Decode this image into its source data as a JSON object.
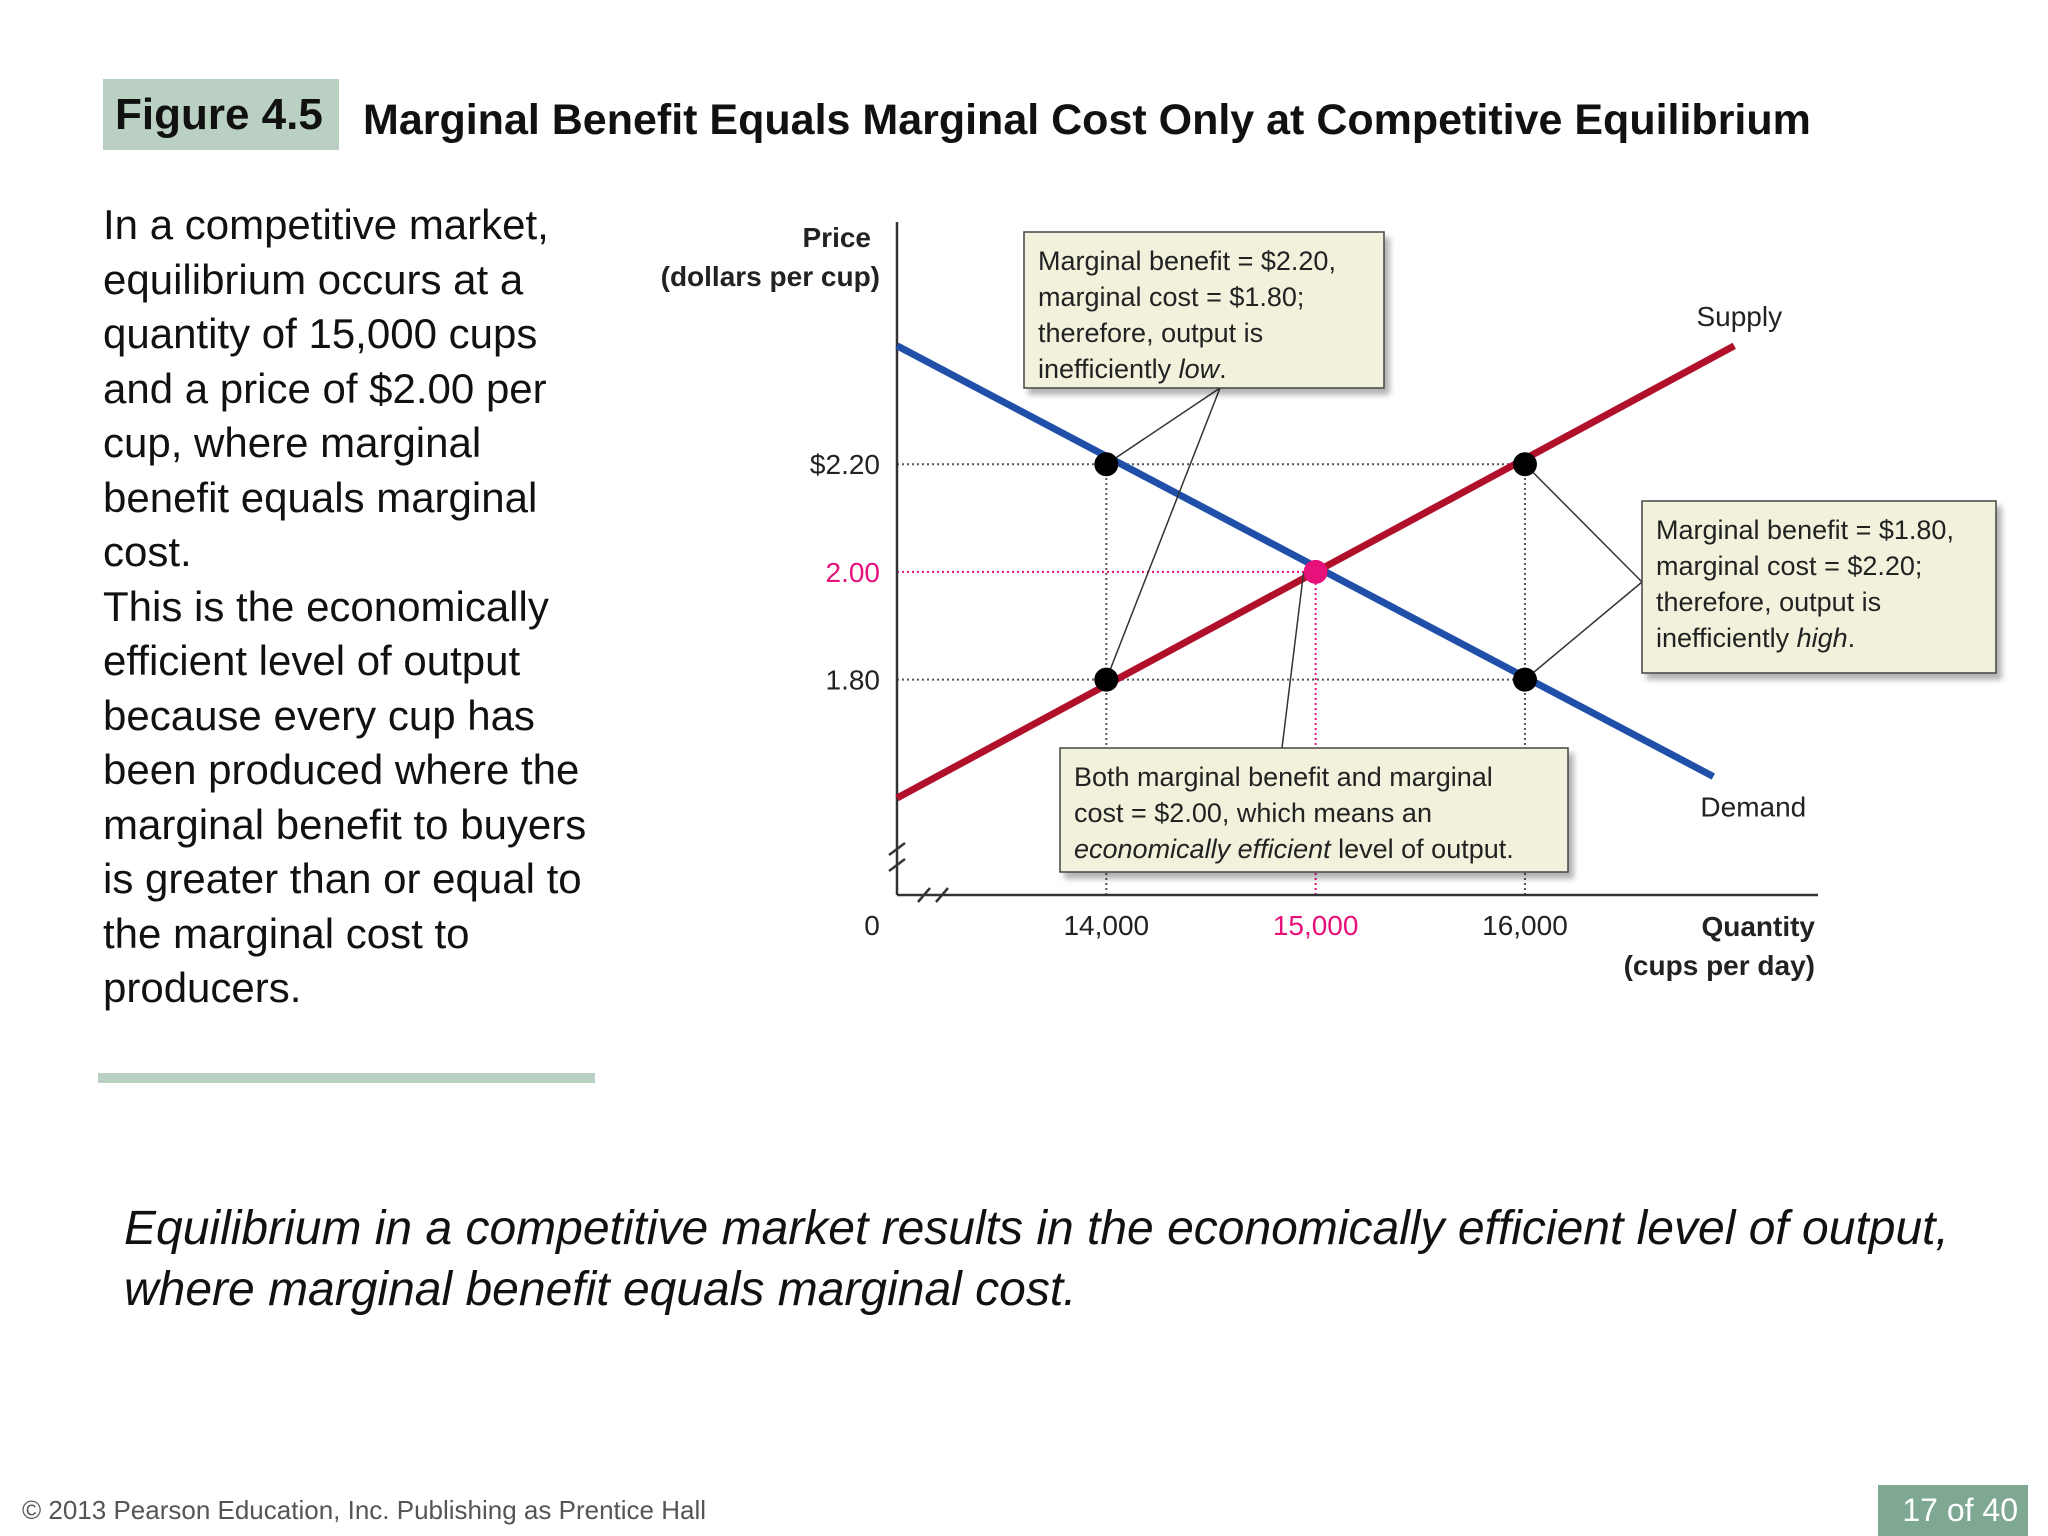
{
  "figure": {
    "badge": "Figure 4.5",
    "title": "Marginal Benefit Equals Marginal Cost Only at Competitive Equilibrium"
  },
  "side_text": {
    "paragraph1": "In a competitive market, equilibrium occurs at a quantity of 15,000 cups and a price of $2.00 per cup, where marginal benefit equals marginal cost.",
    "paragraph2": "This is the economically efficient level of output because every cup has been produced where the marginal benefit to buyers is greater than or equal to the marginal cost to producers."
  },
  "summary": "Equilibrium in a competitive market results in the economically efficient level of output, where marginal benefit equals marginal cost.",
  "footer": {
    "copyright": "© 2013 Pearson Education, Inc. Publishing as Prentice Hall",
    "page": "17 of 40"
  },
  "colors": {
    "demand": "#1f4fa8",
    "supply": "#b0102a",
    "equilibrium": "#e6117a",
    "callout_bg": "#f1f1dc"
  },
  "chart_data": {
    "type": "line",
    "ylabel": [
      "Price",
      "(dollars per cup)"
    ],
    "xlabel": [
      "Quantity",
      "(cups per day)"
    ],
    "origin_label": "0",
    "axis_break": true,
    "xlim": [
      13000,
      17400
    ],
    "ylim": [
      1.4,
      2.7
    ],
    "y_ticks": [
      {
        "value": 2.2,
        "label": "$2.20",
        "highlight": false
      },
      {
        "value": 2.0,
        "label": "2.00",
        "highlight": true
      },
      {
        "value": 1.8,
        "label": "1.80",
        "highlight": false
      }
    ],
    "x_ticks": [
      {
        "value": 14000,
        "label": "14,000",
        "highlight": false
      },
      {
        "value": 15000,
        "label": "15,000",
        "highlight": true
      },
      {
        "value": 16000,
        "label": "16,000",
        "highlight": false
      }
    ],
    "series": [
      {
        "name": "Supply",
        "x": [
          13000,
          17000
        ],
        "y": [
          1.58,
          2.42
        ]
      },
      {
        "name": "Demand",
        "x": [
          13000,
          16900
        ],
        "y": [
          2.42,
          1.62
        ]
      }
    ],
    "points": [
      {
        "x": 14000,
        "y": 2.2,
        "kind": "normal"
      },
      {
        "x": 14000,
        "y": 1.8,
        "kind": "normal"
      },
      {
        "x": 16000,
        "y": 2.2,
        "kind": "normal"
      },
      {
        "x": 16000,
        "y": 1.8,
        "kind": "normal"
      },
      {
        "x": 15000,
        "y": 2.0,
        "kind": "equilibrium"
      }
    ],
    "annotations": [
      {
        "id": "low",
        "lines": [
          "Marginal benefit = $2.20,",
          "marginal cost = $1.80;",
          "therefore, output is",
          "inefficiently low."
        ],
        "emphasis": "low"
      },
      {
        "id": "high",
        "lines": [
          "Marginal benefit = $1.80,",
          "marginal cost = $2.20;",
          "therefore, output is",
          "inefficiently high."
        ],
        "emphasis": "high"
      },
      {
        "id": "efficient",
        "lines": [
          "Both marginal benefit and marginal",
          "cost = $2.00, which means an",
          "economically efficient level of output."
        ],
        "emphasis": "economically efficient"
      }
    ]
  }
}
